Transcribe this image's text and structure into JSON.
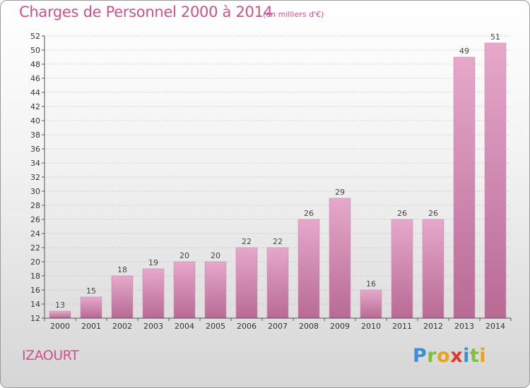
{
  "title": "Charges de Personnel 2000 à 2014",
  "subtitle": "(en milliers d'€)",
  "commune": "IZAOURT",
  "logo": {
    "letters": [
      "P",
      "r",
      "o",
      "x",
      "i",
      "t",
      "i"
    ],
    "colors": {
      "blue": "#3b8fd6",
      "green": "#7fbf3a",
      "orange": "#e8a21b",
      "red": "#d9392e"
    }
  },
  "colors": {
    "accent": "#d0508a",
    "bar_top": "#e6a8cb",
    "bar_bottom": "#b86a94"
  },
  "chart_data": {
    "type": "bar",
    "title": "Charges de Personnel 2000 à 2014",
    "subtitle": "(en milliers d'€)",
    "categories": [
      "2000",
      "2001",
      "2002",
      "2003",
      "2004",
      "2005",
      "2006",
      "2007",
      "2008",
      "2009",
      "2010",
      "2011",
      "2012",
      "2013",
      "2014"
    ],
    "values": [
      13,
      15,
      18,
      19,
      20,
      20,
      22,
      22,
      26,
      29,
      16,
      26,
      26,
      49,
      51
    ],
    "ylim": [
      12,
      52
    ],
    "yticks": [
      12,
      14,
      16,
      18,
      20,
      22,
      24,
      26,
      28,
      30,
      32,
      34,
      36,
      38,
      40,
      42,
      44,
      46,
      48,
      50,
      52
    ],
    "grid": "horizontal-dotted",
    "legend": "none"
  }
}
